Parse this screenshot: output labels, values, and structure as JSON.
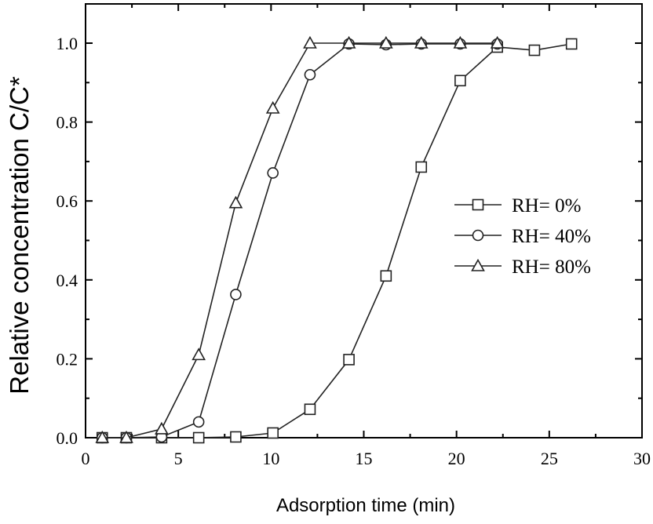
{
  "chart_data": {
    "type": "line",
    "xlabel": "Adsorption time (min)",
    "ylabel": "Relative concentration C/C*",
    "xlim": [
      0,
      30
    ],
    "ylim": [
      0,
      1.0
    ],
    "x_ticks": [
      "0",
      "5",
      "10",
      "15",
      "20",
      "25",
      "30"
    ],
    "y_ticks": [
      "0.0",
      "0.2",
      "0.4",
      "0.6",
      "0.8",
      "1.0"
    ],
    "grid": false,
    "legend_position": "center-right",
    "series": [
      {
        "name": "RH= 0%",
        "marker": "square",
        "x": [
          0.9,
          2.2,
          4.1,
          6.1,
          8.1,
          10.1,
          12.1,
          14.2,
          16.2,
          18.1,
          20.2,
          22.2,
          24.2,
          26.2
        ],
        "y": [
          0.0,
          0.0,
          0.0,
          0.0,
          0.002,
          0.012,
          0.072,
          0.198,
          0.41,
          0.686,
          0.905,
          0.99,
          0.982,
          0.998
        ]
      },
      {
        "name": "RH= 40%",
        "marker": "circle",
        "x": [
          0.9,
          2.2,
          4.1,
          6.1,
          8.1,
          10.1,
          12.1,
          14.2,
          16.2,
          18.1,
          20.2,
          22.2
        ],
        "y": [
          0.0,
          0.0,
          0.002,
          0.04,
          0.363,
          0.671,
          0.92,
          0.998,
          0.996,
          0.998,
          0.998,
          0.998
        ]
      },
      {
        "name": "RH= 80%",
        "marker": "triangle",
        "x": [
          0.9,
          2.2,
          4.1,
          6.1,
          8.1,
          10.1,
          12.1,
          14.2,
          16.2,
          18.1,
          20.2,
          22.2
        ],
        "y": [
          0.0,
          0.0,
          0.022,
          0.21,
          0.595,
          0.835,
          1.0,
          1.0,
          1.0,
          1.0,
          1.0,
          1.0
        ]
      }
    ]
  }
}
